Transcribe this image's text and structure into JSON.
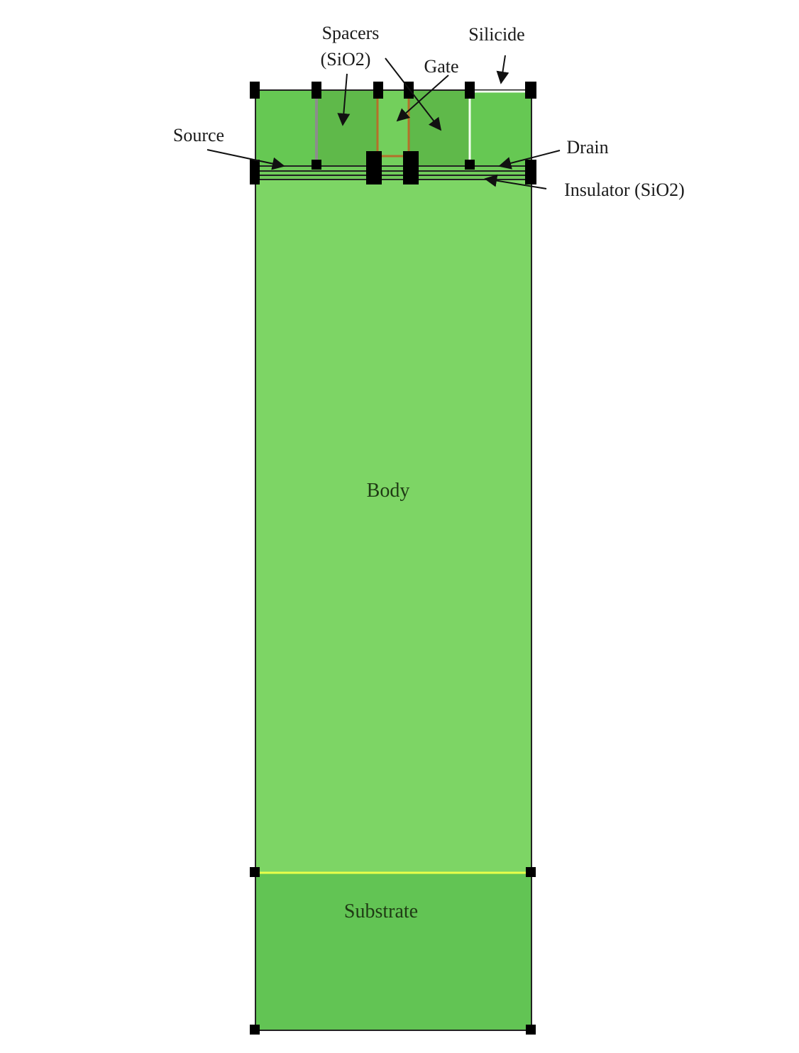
{
  "diagram": {
    "labels": {
      "spacers_line1": "Spacers",
      "spacers_line2": "(SiO2)",
      "gate": "Gate",
      "silicide": "Silicide",
      "source": "Source",
      "drain": "Drain",
      "insulator": "Insulator (SiO2)",
      "body": "Body",
      "substrate": "Substrate"
    },
    "colors": {
      "background": "#ffffff",
      "body": "#7dd565",
      "substrate": "#62c454",
      "source_drain": "#66c853",
      "spacer": "#5fb94a",
      "gate": "#73cf5c",
      "outline": "#222222",
      "node": "#000000",
      "substrate_interface": "#e8ff4a",
      "gate_edge": "#b4702a",
      "silicide_edge": "#f4fff0",
      "source_contact_edge": "#8c8c8c"
    }
  }
}
